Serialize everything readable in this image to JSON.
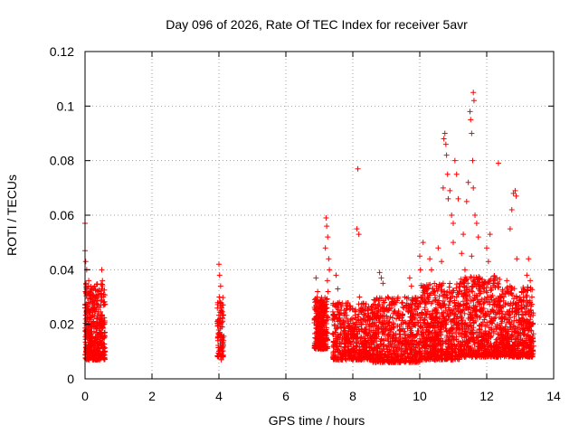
{
  "chart_data": {
    "type": "scatter",
    "title": "Day 096 of 2026, Rate Of TEC Index for receiver 5avr",
    "xlabel": "GPS time / hours",
    "ylabel": "ROTI / TECUs",
    "xlim": [
      0,
      14
    ],
    "ylim": [
      0,
      0.12
    ],
    "xticks": [
      0,
      2,
      4,
      6,
      8,
      10,
      12,
      14
    ],
    "xtick_labels": [
      "0",
      "2",
      "4",
      "6",
      "8",
      "10",
      "12",
      "14"
    ],
    "yticks": [
      0,
      0.02,
      0.04,
      0.06,
      0.08,
      0.1,
      0.12
    ],
    "ytick_labels": [
      "0",
      "0.02",
      "0.04",
      "0.06",
      "0.08",
      "0.1",
      "0.12"
    ],
    "grid": true,
    "marker": "+",
    "color": "#ff0000",
    "series": [
      {
        "name": "ROTI",
        "points": [
          [
            0.0,
            0.057
          ],
          [
            0.0,
            0.047
          ],
          [
            0.02,
            0.043
          ],
          [
            0.05,
            0.04
          ],
          [
            0.03,
            0.035
          ],
          [
            0.08,
            0.031
          ],
          [
            0.1,
            0.028
          ],
          [
            0.05,
            0.024
          ],
          [
            0.12,
            0.021
          ],
          [
            0.04,
            0.018
          ],
          [
            0.09,
            0.016
          ],
          [
            0.15,
            0.014
          ],
          [
            0.2,
            0.012
          ],
          [
            0.18,
            0.01
          ],
          [
            0.25,
            0.033
          ],
          [
            0.3,
            0.03
          ],
          [
            0.28,
            0.026
          ],
          [
            0.35,
            0.022
          ],
          [
            0.32,
            0.019
          ],
          [
            0.38,
            0.016
          ],
          [
            0.4,
            0.013
          ],
          [
            0.42,
            0.011
          ],
          [
            0.45,
            0.009
          ],
          [
            0.48,
            0.008
          ],
          [
            0.5,
            0.04
          ],
          [
            0.52,
            0.036
          ],
          [
            0.47,
            0.031
          ],
          [
            0.55,
            0.027
          ],
          [
            0.5,
            0.023
          ],
          [
            0.53,
            0.019
          ],
          [
            0.56,
            0.015
          ],
          [
            0.44,
            0.017
          ],
          [
            0.36,
            0.012
          ],
          [
            0.22,
            0.015
          ],
          [
            0.13,
            0.019
          ],
          [
            0.07,
            0.022
          ],
          [
            0.17,
            0.025
          ],
          [
            0.26,
            0.013
          ],
          [
            0.33,
            0.009
          ],
          [
            0.41,
            0.02
          ],
          [
            0.06,
            0.011
          ],
          [
            0.11,
            0.036
          ],
          [
            4.0,
            0.042
          ],
          [
            4.02,
            0.038
          ],
          [
            4.05,
            0.034
          ],
          [
            4.01,
            0.03
          ],
          [
            4.08,
            0.026
          ],
          [
            4.03,
            0.022
          ],
          [
            4.1,
            0.019
          ],
          [
            4.06,
            0.016
          ],
          [
            4.04,
            0.013
          ],
          [
            4.09,
            0.011
          ],
          [
            4.0,
            0.009
          ],
          [
            4.07,
            0.007
          ],
          [
            4.12,
            0.015
          ],
          [
            4.05,
            0.02
          ],
          [
            6.9,
            0.037
          ],
          [
            6.95,
            0.032
          ],
          [
            7.0,
            0.028
          ],
          [
            6.92,
            0.025
          ],
          [
            7.05,
            0.022
          ],
          [
            6.98,
            0.019
          ],
          [
            7.02,
            0.017
          ],
          [
            7.08,
            0.015
          ],
          [
            6.97,
            0.013
          ],
          [
            7.1,
            0.011
          ],
          [
            7.12,
            0.023
          ],
          [
            7.15,
            0.027
          ],
          [
            7.2,
            0.059
          ],
          [
            7.22,
            0.056
          ],
          [
            7.25,
            0.052
          ],
          [
            7.18,
            0.048
          ],
          [
            7.28,
            0.044
          ],
          [
            7.3,
            0.04
          ],
          [
            7.24,
            0.036
          ],
          [
            7.26,
            0.032
          ],
          [
            7.03,
            0.02
          ],
          [
            6.94,
            0.016
          ],
          [
            7.5,
            0.038
          ],
          [
            7.55,
            0.033
          ],
          [
            7.6,
            0.028
          ],
          [
            7.65,
            0.024
          ],
          [
            7.7,
            0.02
          ],
          [
            7.75,
            0.017
          ],
          [
            7.8,
            0.014
          ],
          [
            7.85,
            0.012
          ],
          [
            7.9,
            0.01
          ],
          [
            7.95,
            0.016
          ],
          [
            8.0,
            0.022
          ],
          [
            8.05,
            0.018
          ],
          [
            8.1,
            0.015
          ],
          [
            8.15,
            0.077
          ],
          [
            8.12,
            0.055
          ],
          [
            8.18,
            0.053
          ],
          [
            8.2,
            0.03
          ],
          [
            8.25,
            0.026
          ],
          [
            8.3,
            0.013
          ],
          [
            8.35,
            0.01
          ],
          [
            8.4,
            0.008
          ],
          [
            8.5,
            0.02
          ],
          [
            8.6,
            0.024
          ],
          [
            8.7,
            0.017
          ],
          [
            8.8,
            0.039
          ],
          [
            8.85,
            0.037
          ],
          [
            8.9,
            0.035
          ],
          [
            8.95,
            0.028
          ],
          [
            9.0,
            0.012
          ],
          [
            9.1,
            0.009
          ],
          [
            9.2,
            0.015
          ],
          [
            9.3,
            0.022
          ],
          [
            9.4,
            0.018
          ],
          [
            9.5,
            0.013
          ],
          [
            9.55,
            0.01
          ],
          [
            9.6,
            0.027
          ],
          [
            9.7,
            0.037
          ],
          [
            9.75,
            0.034
          ],
          [
            9.8,
            0.02
          ],
          [
            9.9,
            0.016
          ],
          [
            10.0,
            0.045
          ],
          [
            10.02,
            0.04
          ],
          [
            10.05,
            0.03
          ],
          [
            10.1,
            0.05
          ],
          [
            10.15,
            0.012
          ],
          [
            10.2,
            0.018
          ],
          [
            10.3,
            0.044
          ],
          [
            10.35,
            0.04
          ],
          [
            10.4,
            0.024
          ],
          [
            10.45,
            0.01
          ],
          [
            10.5,
            0.034
          ],
          [
            10.55,
            0.048
          ],
          [
            10.6,
            0.027
          ],
          [
            10.65,
            0.043
          ],
          [
            10.7,
            0.07
          ],
          [
            10.72,
            0.088
          ],
          [
            10.75,
            0.09
          ],
          [
            10.78,
            0.086
          ],
          [
            10.8,
            0.082
          ],
          [
            10.83,
            0.075
          ],
          [
            10.85,
            0.066
          ],
          [
            10.7,
            0.035
          ],
          [
            10.75,
            0.022
          ],
          [
            10.9,
            0.069
          ],
          [
            10.95,
            0.06
          ],
          [
            11.0,
            0.057
          ],
          [
            11.0,
            0.05
          ],
          [
            11.05,
            0.08
          ],
          [
            11.1,
            0.075
          ],
          [
            11.15,
            0.066
          ],
          [
            11.1,
            0.03
          ],
          [
            11.2,
            0.018
          ],
          [
            11.25,
            0.046
          ],
          [
            11.3,
            0.053
          ],
          [
            11.35,
            0.04
          ],
          [
            11.4,
            0.065
          ],
          [
            11.45,
            0.072
          ],
          [
            11.5,
            0.098
          ],
          [
            11.52,
            0.095
          ],
          [
            11.55,
            0.09
          ],
          [
            11.6,
            0.105
          ],
          [
            11.62,
            0.102
          ],
          [
            11.58,
            0.08
          ],
          [
            11.6,
            0.07
          ],
          [
            11.65,
            0.06
          ],
          [
            11.7,
            0.057
          ],
          [
            11.55,
            0.045
          ],
          [
            11.75,
            0.052
          ],
          [
            11.8,
            0.034
          ],
          [
            11.85,
            0.02
          ],
          [
            11.9,
            0.015
          ],
          [
            12.0,
            0.048
          ],
          [
            12.05,
            0.043
          ],
          [
            12.1,
            0.053
          ],
          [
            12.15,
            0.022
          ],
          [
            12.2,
            0.012
          ],
          [
            12.3,
            0.037
          ],
          [
            12.35,
            0.079
          ],
          [
            12.4,
            0.03
          ],
          [
            12.5,
            0.015
          ],
          [
            12.6,
            0.036
          ],
          [
            12.7,
            0.055
          ],
          [
            12.75,
            0.062
          ],
          [
            12.8,
            0.068
          ],
          [
            12.85,
            0.069
          ],
          [
            12.88,
            0.067
          ],
          [
            12.9,
            0.044
          ],
          [
            12.95,
            0.028
          ],
          [
            13.0,
            0.017
          ],
          [
            13.05,
            0.01
          ],
          [
            13.1,
            0.033
          ],
          [
            13.15,
            0.021
          ],
          [
            13.2,
            0.038
          ],
          [
            13.25,
            0.044
          ],
          [
            13.3,
            0.036
          ],
          [
            13.35,
            0.03
          ],
          [
            13.38,
            0.02
          ],
          [
            13.4,
            0.012
          ],
          [
            13.3,
            0.025
          ],
          [
            13.2,
            0.016
          ]
        ],
        "bands": [
          {
            "x0": 0.0,
            "x1": 0.6,
            "ymin": 0.007,
            "ymax": 0.035,
            "n": 420
          },
          {
            "x0": 3.95,
            "x1": 4.15,
            "ymin": 0.008,
            "ymax": 0.03,
            "n": 90
          },
          {
            "x0": 6.85,
            "x1": 7.25,
            "ymin": 0.011,
            "ymax": 0.03,
            "n": 320
          },
          {
            "x0": 7.4,
            "x1": 8.6,
            "ymin": 0.007,
            "ymax": 0.028,
            "n": 520
          },
          {
            "x0": 8.6,
            "x1": 10.0,
            "ymin": 0.006,
            "ymax": 0.03,
            "n": 620
          },
          {
            "x0": 10.0,
            "x1": 11.2,
            "ymin": 0.007,
            "ymax": 0.035,
            "n": 620
          },
          {
            "x0": 11.2,
            "x1": 12.4,
            "ymin": 0.008,
            "ymax": 0.038,
            "n": 620
          },
          {
            "x0": 12.4,
            "x1": 13.4,
            "ymin": 0.008,
            "ymax": 0.034,
            "n": 520
          }
        ]
      }
    ]
  }
}
